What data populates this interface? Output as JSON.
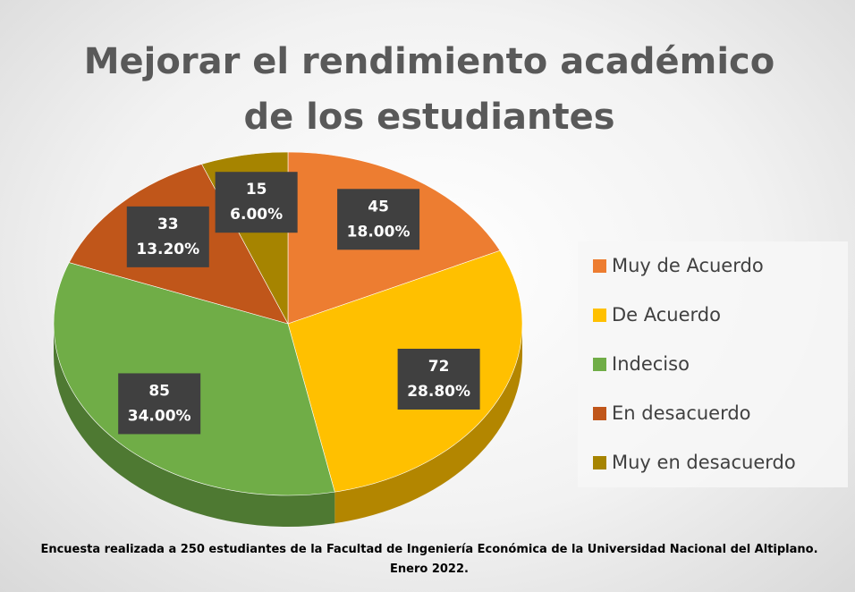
{
  "chart_data": {
    "type": "pie",
    "title": "Mejorar el rendimiento académico de los estudiantes",
    "caption": "Encuesta realizada a 250 estudiantes de la Facultad de Ingeniería Económica de la Universidad Nacional del Altiplano. Enero 2022.",
    "categories": [
      "Muy de Acuerdo",
      "De Acuerdo",
      "Indeciso",
      "En desacuerdo",
      "Muy en desacuerdo"
    ],
    "values": [
      45,
      72,
      85,
      33,
      15
    ],
    "percentages": [
      18,
      28.8,
      34,
      13.2,
      6
    ],
    "percentage_labels": [
      "18.00%",
      "28.80%",
      "34.00%",
      "13.20%",
      "6.00%"
    ],
    "colors": [
      "#ED7D31",
      "#FFC000",
      "#70AD47",
      "#C0561A",
      "#A68400"
    ],
    "legend": "right"
  }
}
